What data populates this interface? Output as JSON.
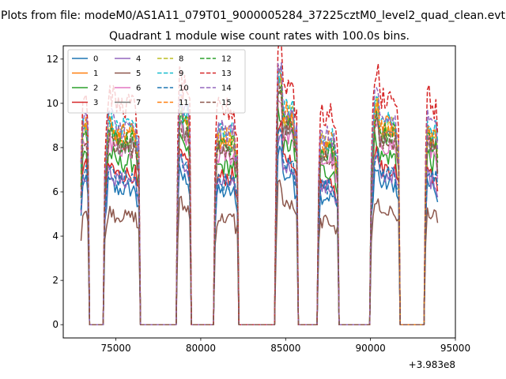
{
  "figure": {
    "suptitle": "Plots from file: modeM0/AS1A11_079T01_9000005284_37225cztM0_level2_quad_clean.evt",
    "title": "Quadrant 1 module wise count rates with 100.0s bins.",
    "x_offset_label": "+3.983e8"
  },
  "chart_data": {
    "type": "line",
    "title": "Quadrant 1 module wise count rates with 100.0s bins.",
    "xlabel": "",
    "ylabel": "",
    "x_offset": 398300000,
    "xlim": [
      71900,
      95000
    ],
    "ylim": [
      -0.6,
      12.6
    ],
    "x_ticks": [
      75000,
      80000,
      85000,
      90000,
      95000
    ],
    "y_ticks": [
      0,
      2,
      4,
      6,
      8,
      10,
      12
    ],
    "grid": false,
    "legend": {
      "placement": "top-left",
      "columns": 4
    },
    "bin_seconds": 100,
    "active_intervals": [
      [
        72950,
        73350
      ],
      [
        74350,
        76350
      ],
      [
        78650,
        79350
      ],
      [
        80850,
        82150
      ],
      [
        84450,
        85650
      ],
      [
        86950,
        88050
      ],
      [
        90050,
        91650
      ],
      [
        93250,
        93950
      ]
    ],
    "series": [
      {
        "name": "0",
        "color": "#1f77b4",
        "dash": "solid",
        "level": 6.1
      },
      {
        "name": "1",
        "color": "#ff7f0e",
        "dash": "solid",
        "level": 8.4
      },
      {
        "name": "2",
        "color": "#2ca02c",
        "dash": "solid",
        "level": 7.3
      },
      {
        "name": "3",
        "color": "#d62728",
        "dash": "solid",
        "level": 6.8
      },
      {
        "name": "4",
        "color": "#9467bd",
        "dash": "solid",
        "level": 6.5
      },
      {
        "name": "5",
        "color": "#8c564b",
        "dash": "solid",
        "level": 4.9
      },
      {
        "name": "6",
        "color": "#e377c2",
        "dash": "solid",
        "level": 7.8
      },
      {
        "name": "7",
        "color": "#7f7f7f",
        "dash": "solid",
        "level": 8.2
      },
      {
        "name": "8",
        "color": "#bcbd22",
        "dash": "dashed",
        "level": 8.6
      },
      {
        "name": "9",
        "color": "#17becf",
        "dash": "dashed",
        "level": 8.8
      },
      {
        "name": "10",
        "color": "#1f77b4",
        "dash": "dashed",
        "level": 6.6
      },
      {
        "name": "11",
        "color": "#ff7f0e",
        "dash": "dashed",
        "level": 8.7
      },
      {
        "name": "12",
        "color": "#2ca02c",
        "dash": "dashed",
        "level": 8.3
      },
      {
        "name": "13",
        "color": "#d62728",
        "dash": "dashed",
        "level": 9.9
      },
      {
        "name": "14",
        "color": "#9467bd",
        "dash": "dashed",
        "level": 8.9
      },
      {
        "name": "15",
        "color": "#8c564b",
        "dash": "dashed",
        "level": 8.0
      }
    ]
  }
}
